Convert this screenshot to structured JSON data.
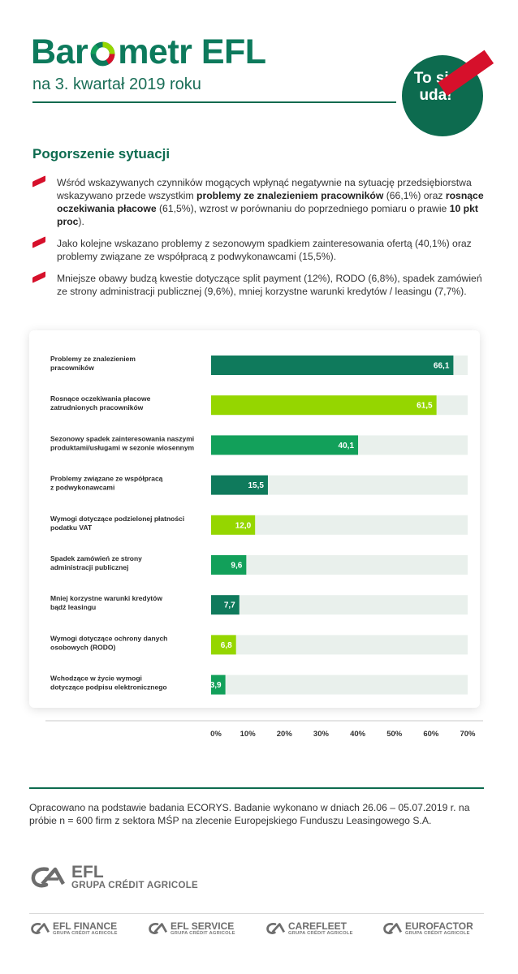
{
  "header": {
    "brand_prefix": "Bar",
    "brand_suffix": "metr EFL",
    "subtitle": "na 3. kwartał 2019 roku",
    "badge_line1": "To się",
    "badge_line2": "uda!"
  },
  "section": {
    "title": "Pogorszenie sytuacji",
    "bullets": [
      {
        "t1": "Wśród wskazywanych czynników mogących wpłynąć negatywnie na sytuację przedsiębiorstwa wskazywano przede wszystkim ",
        "b1": "problemy ze znalezieniem pracowników",
        "t2": " (66,1%) oraz ",
        "b2": "rosnące oczekiwania płacowe",
        "t3": " (61,5%), wzrost w porównaniu do poprzedniego pomiaru o prawie ",
        "b3": "10 pkt proc",
        "t4": ")."
      },
      {
        "text": "Jako kolejne wskazano problemy z sezonowym spadkiem zainteresowania ofertą (40,1%) oraz problemy związane ze współpracą z podwykonawcami (15,5%)."
      },
      {
        "text": "Mniejsze obawy budzą kwestie dotyczące split payment (12%), RODO (6,8%), spadek zamówień ze strony administracji publicznej (9,6%), mniej korzystne warunki kredytów / leasingu (7,7%)."
      }
    ]
  },
  "colors": {
    "dark_green": "#0f7a5c",
    "lime": "#95d600",
    "mid_green": "#12a05a",
    "track": "#e9f0ec",
    "accent_red": "#d6102b"
  },
  "chart_data": {
    "type": "bar",
    "orientation": "horizontal",
    "categories": [
      [
        "Problemy ze znalezieniem",
        "pracowników"
      ],
      [
        "Rosnące oczekiwania płacowe",
        "zatrudnionych pracowników"
      ],
      [
        "Sezonowy spadek zainteresowania naszymi",
        "produktami/usługami w sezonie wiosennym"
      ],
      [
        "Problemy związane ze współpracą",
        "z podwykonawcami"
      ],
      [
        "Wymogi dotyczące podzielonej płatności",
        "podatku VAT"
      ],
      [
        "Spadek zamówień ze strony",
        "administracji publicznej"
      ],
      [
        "Mniej korzystne warunki kredytów",
        "bądź leasingu"
      ],
      [
        "Wymogi dotyczące ochrony danych",
        "osobowych (RODO)"
      ],
      [
        "Wchodzące w życie wymogi",
        "dotyczące podpisu elektronicznego"
      ]
    ],
    "values": [
      66.1,
      61.5,
      40.1,
      15.5,
      12.0,
      9.6,
      7.7,
      6.8,
      3.9
    ],
    "value_labels": [
      "66,1",
      "61,5",
      "40,1",
      "15,5",
      "12,0",
      "9,6",
      "7,7",
      "6,8",
      "3,9"
    ],
    "bar_colors": [
      "dark_green",
      "lime",
      "mid_green",
      "dark_green",
      "lime",
      "mid_green",
      "dark_green",
      "lime",
      "mid_green"
    ],
    "xlim": [
      0,
      70
    ],
    "xticks": [
      "0%",
      "10%",
      "20%",
      "30%",
      "40%",
      "50%",
      "60%",
      "70%"
    ],
    "grid": false
  },
  "footer": {
    "note": "Opracowano na podstawie badania ECORYS. Badanie wykonano w dniach 26.06 – 05.07.2019 r. na próbie n = 600 firm z sektora MŚP na zlecenie Europejskiego Funduszu Leasingowego S.A.",
    "main_logo_name": "EFL",
    "main_logo_group": "GRUPA CRÉDIT AGRICOLE",
    "sub_logos": [
      {
        "name": "EFL FINANCE",
        "group": "GRUPA CRÉDIT AGRICOLE"
      },
      {
        "name": "EFL SERVICE",
        "group": "GRUPA CRÉDIT AGRICOLE"
      },
      {
        "name": "CAREFLEET",
        "group": "GRUPA CRÉDIT AGRICOLE"
      },
      {
        "name": "EUROFACTOR",
        "group": "GRUPA CRÉDIT AGRICOLE"
      }
    ]
  }
}
